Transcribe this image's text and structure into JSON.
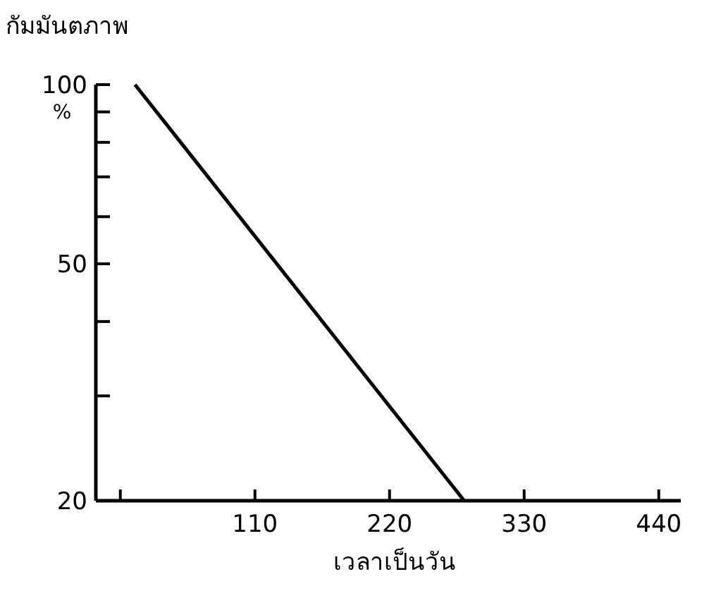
{
  "chart_data": {
    "type": "line",
    "ylabel": "กัมมันตภาพ",
    "xlabel": "เวลาเป็นวัน",
    "log": "y",
    "x": [
      12,
      281
    ],
    "series": [
      {
        "color": "#000000",
        "values": [
          100,
          20
        ]
      }
    ],
    "xlim": [
      -20,
      458
    ],
    "xticks": [
      {
        "value": 0,
        "label": null
      },
      110,
      220,
      330,
      440
    ],
    "ylim": [
      20,
      100
    ],
    "yticks": [
      20,
      {
        "value": 30,
        "label": null
      },
      {
        "value": 40,
        "label": null
      },
      50,
      {
        "value": 60,
        "label": null
      },
      {
        "value": 70,
        "label": null
      },
      {
        "value": 80,
        "label": null
      },
      {
        "value": 90,
        "label": null
      },
      100
    ],
    "annotations": [
      "%"
    ],
    "grid": false,
    "marker": "none",
    "line_style": "solid"
  }
}
